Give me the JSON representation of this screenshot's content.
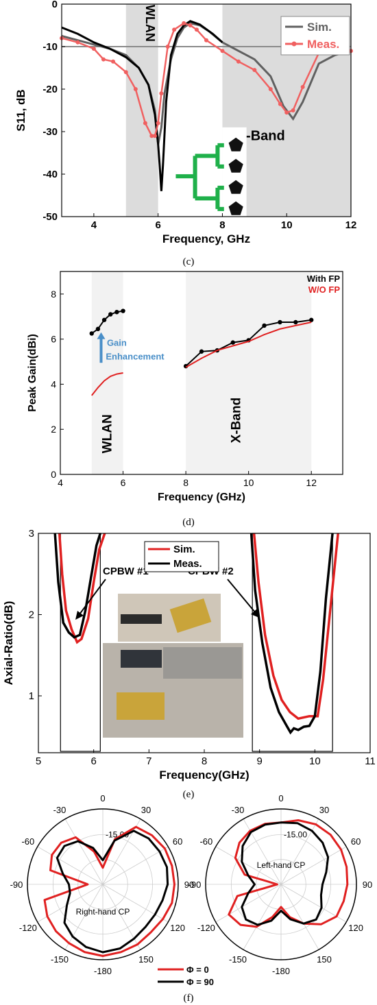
{
  "captions": {
    "c": "(c)",
    "d": "(d)",
    "e": "(e)",
    "f": "(f)"
  },
  "chart_data": [
    {
      "id": "c",
      "type": "line",
      "xlabel": "Frequency, GHz",
      "ylabel": "S11, dB",
      "xlim": [
        3,
        12
      ],
      "ylim": [
        -50,
        0
      ],
      "xticks": [
        4,
        6,
        8,
        10,
        12
      ],
      "yticks": [
        0,
        -10,
        -20,
        -30,
        -40,
        -50
      ],
      "grid": false,
      "legend": "top-right",
      "reference_line": -10,
      "bands": [
        {
          "label": "WLAN",
          "x": [
            5,
            6
          ]
        },
        {
          "label": "X-Band",
          "x": [
            8,
            12
          ]
        }
      ],
      "series": [
        {
          "name": "Sim.",
          "color": "#606060",
          "x": [
            3,
            3.5,
            4,
            4.5,
            5,
            5.4,
            5.7,
            5.9,
            6.0,
            6.1,
            6.2,
            6.4,
            6.6,
            6.8,
            7.0,
            7.3,
            7.6,
            8.0,
            8.5,
            9.0,
            9.5,
            9.9,
            10.2,
            10.5,
            11,
            11.5,
            12
          ],
          "y": [
            -7.5,
            -8.5,
            -9.5,
            -10.5,
            -12,
            -15,
            -19,
            -25,
            -33,
            -29,
            -21,
            -13,
            -8,
            -5.5,
            -4.5,
            -5,
            -6.5,
            -9,
            -11,
            -13,
            -17,
            -24,
            -27,
            -23,
            -14,
            -12,
            -11
          ]
        },
        {
          "name": "Meas.",
          "color": "#f06060",
          "x": [
            3,
            3.5,
            4,
            4.3,
            4.6,
            5.0,
            5.3,
            5.6,
            5.8,
            5.9,
            6.0,
            6.1,
            6.3,
            6.5,
            6.8,
            7.0,
            7.2,
            7.5,
            8.0,
            8.5,
            9.0,
            9.5,
            9.8,
            10.0,
            10.2,
            10.5,
            11,
            11.5,
            12
          ],
          "y": [
            -8,
            -9,
            -10.5,
            -13,
            -13.5,
            -16,
            -20,
            -28,
            -31,
            -31,
            -28,
            -21,
            -10,
            -6,
            -4.5,
            -5,
            -6,
            -8.5,
            -11,
            -13.5,
            -15.5,
            -20,
            -23.5,
            -25.5,
            -25,
            -19.5,
            -11.5,
            -11,
            -11
          ]
        },
        {
          "name": "",
          "color": "#000000",
          "x": [
            3,
            3.5,
            4,
            4.5,
            5.0,
            5.4,
            5.7,
            5.9,
            6.0,
            6.05,
            6.1,
            6.15,
            6.25,
            6.4,
            6.6,
            6.8,
            7.0,
            7.3,
            7.7,
            8.0
          ],
          "y": [
            -5.5,
            -7,
            -9,
            -10.5,
            -12.5,
            -15,
            -19,
            -26,
            -33,
            -38,
            -44,
            -38,
            -23,
            -12,
            -7,
            -5,
            -4,
            -4.8,
            -7,
            -9
          ]
        }
      ]
    },
    {
      "id": "d",
      "type": "line",
      "xlabel": "Frequency (GHz)",
      "ylabel": "Peak Gain(dBi)",
      "xlim": [
        4,
        13
      ],
      "ylim": [
        0,
        9
      ],
      "xticks": [
        4,
        6,
        8,
        10,
        12
      ],
      "yticks": [
        0,
        2,
        4,
        6,
        8
      ],
      "grid": false,
      "legend": "top-right",
      "bands": [
        {
          "label": "WLAN",
          "x": [
            5,
            6
          ]
        },
        {
          "label": "X-Band",
          "x": [
            8,
            12
          ]
        }
      ],
      "annotation": [
        "Gain",
        "Enhancement"
      ],
      "series": [
        {
          "name": "With FP",
          "color": "#000000",
          "segments": [
            {
              "x": [
                5.0,
                5.2,
                5.4,
                5.6,
                5.8,
                6.0
              ],
              "y": [
                6.25,
                6.45,
                6.85,
                7.1,
                7.2,
                7.25
              ]
            },
            {
              "x": [
                8.0,
                8.5,
                9.0,
                9.5,
                10.0,
                10.5,
                11.0,
                11.5,
                12.0
              ],
              "y": [
                4.8,
                5.45,
                5.5,
                5.85,
                5.95,
                6.6,
                6.75,
                6.75,
                6.85
              ]
            }
          ]
        },
        {
          "name": "W/O FP",
          "color": "#e02020",
          "segments": [
            {
              "x": [
                5.0,
                5.2,
                5.4,
                5.6,
                5.8,
                6.0
              ],
              "y": [
                3.5,
                3.85,
                4.15,
                4.35,
                4.45,
                4.5
              ]
            },
            {
              "x": [
                8.0,
                8.5,
                9.0,
                9.5,
                10.0,
                10.5,
                11.0,
                11.5,
                12.0
              ],
              "y": [
                4.75,
                5.15,
                5.5,
                5.7,
                5.9,
                6.2,
                6.45,
                6.6,
                6.75
              ]
            }
          ]
        }
      ]
    },
    {
      "id": "e",
      "type": "line",
      "xlabel": "Frequency(GHz)",
      "ylabel": "Axial-Ratio(dB)",
      "xlim": [
        5,
        11
      ],
      "ylim": [
        0.3,
        3
      ],
      "xticks": [
        5,
        6,
        7,
        8,
        9,
        10,
        11
      ],
      "yticks": [
        1,
        2,
        3
      ],
      "grid": false,
      "legend": "top-center",
      "annotations": [
        "CPBW #1",
        "CPBW #2"
      ],
      "inset": "photo of antenna measurement setup",
      "series": [
        {
          "name": "Sim.",
          "color": "#e02020",
          "segments": [
            {
              "x": [
                5.38,
                5.43,
                5.5,
                5.6,
                5.7,
                5.78,
                5.9,
                6.0,
                6.1,
                6.2
              ],
              "y": [
                3.0,
                2.5,
                2.05,
                1.82,
                1.66,
                1.7,
                1.95,
                2.4,
                2.8,
                3.0
              ]
            },
            {
              "x": [
                8.9,
                8.98,
                9.1,
                9.25,
                9.4,
                9.55,
                9.7,
                9.9,
                10.05,
                10.15,
                10.3,
                10.42
              ],
              "y": [
                3.0,
                2.4,
                1.75,
                1.25,
                0.95,
                0.8,
                0.72,
                0.75,
                0.75,
                1.2,
                2.2,
                3.0
              ]
            }
          ]
        },
        {
          "name": "Meas.",
          "color": "#000000",
          "segments": [
            {
              "x": [
                5.3,
                5.36,
                5.45,
                5.55,
                5.65,
                5.75,
                5.85,
                5.95,
                6.05,
                6.12
              ],
              "y": [
                3.0,
                2.4,
                1.9,
                1.78,
                1.72,
                1.75,
                2.05,
                2.45,
                2.85,
                3.0
              ]
            },
            {
              "x": [
                8.85,
                8.92,
                9.05,
                9.2,
                9.35,
                9.5,
                9.56,
                9.62,
                9.7,
                9.8,
                9.9,
                10.0,
                10.1,
                10.2,
                10.32
              ],
              "y": [
                3.0,
                2.3,
                1.65,
                1.1,
                0.8,
                0.62,
                0.55,
                0.6,
                0.58,
                0.62,
                0.63,
                0.75,
                1.3,
                2.2,
                3.0
              ]
            }
          ]
        }
      ]
    },
    {
      "id": "f",
      "type": "polar",
      "angle_ticks": [
        0,
        30,
        60,
        90,
        120,
        150,
        -180,
        -150,
        -120,
        -90,
        -60,
        -30
      ],
      "r_label": "-15.00",
      "legend": "bottom-center",
      "series_legend": [
        {
          "name": "Φ = 0",
          "color": "#e02020"
        },
        {
          "name": "Φ = 90",
          "color": "#000000"
        }
      ],
      "plots": [
        {
          "label": "Right-hand CP",
          "series": [
            {
              "name": "Φ = 0",
              "color": "#e02020",
              "theta": [
                0,
                15,
                30,
                45,
                60,
                75,
                90,
                105,
                120,
                135,
                150,
                165,
                180,
                195,
                210,
                225,
                240,
                255,
                270,
                285,
                300,
                315,
                330,
                345
              ],
              "r": [
                0.22,
                0.62,
                0.88,
                0.92,
                0.95,
                0.95,
                0.95,
                0.95,
                0.92,
                0.9,
                0.92,
                0.93,
                0.95,
                0.93,
                0.9,
                0.88,
                0.85,
                0.8,
                0.2,
                0.72,
                0.78,
                0.78,
                0.72,
                0.45
              ]
            },
            {
              "name": "Φ = 90",
              "color": "#000000",
              "theta": [
                0,
                15,
                30,
                45,
                60,
                75,
                90,
                105,
                120,
                135,
                150,
                165,
                180,
                195,
                210,
                225,
                240,
                255,
                270,
                285,
                300,
                315,
                330,
                345
              ],
              "r": [
                0.32,
                0.6,
                0.82,
                0.86,
                0.87,
                0.88,
                0.86,
                0.82,
                0.8,
                0.8,
                0.83,
                0.88,
                0.9,
                0.86,
                0.8,
                0.72,
                0.55,
                0.45,
                0.45,
                0.55,
                0.7,
                0.72,
                0.66,
                0.5
              ]
            }
          ]
        },
        {
          "label": "Left-hand CP",
          "series": [
            {
              "name": "Φ = 0",
              "color": "#e02020",
              "theta": [
                0,
                15,
                30,
                45,
                60,
                75,
                90,
                105,
                120,
                135,
                150,
                165,
                180,
                195,
                210,
                225,
                240,
                255,
                270,
                285,
                300,
                315,
                330,
                345
              ],
              "r": [
                0.82,
                0.88,
                0.92,
                0.93,
                0.92,
                0.9,
                0.88,
                0.86,
                0.85,
                0.75,
                0.6,
                0.45,
                0.3,
                0.45,
                0.65,
                0.76,
                0.8,
                0.6,
                0.05,
                0.5,
                0.7,
                0.78,
                0.82,
                0.83
              ]
            },
            {
              "name": "Φ = 90",
              "color": "#000000",
              "theta": [
                0,
                15,
                30,
                45,
                60,
                75,
                90,
                105,
                120,
                135,
                150,
                165,
                180,
                195,
                210,
                225,
                240,
                255,
                270,
                285,
                300,
                315,
                330,
                345
              ],
              "r": [
                0.82,
                0.84,
                0.82,
                0.78,
                0.72,
                0.62,
                0.55,
                0.55,
                0.62,
                0.66,
                0.6,
                0.48,
                0.35,
                0.5,
                0.62,
                0.66,
                0.6,
                0.45,
                0.35,
                0.45,
                0.6,
                0.72,
                0.8,
                0.82
              ]
            }
          ]
        }
      ]
    }
  ]
}
